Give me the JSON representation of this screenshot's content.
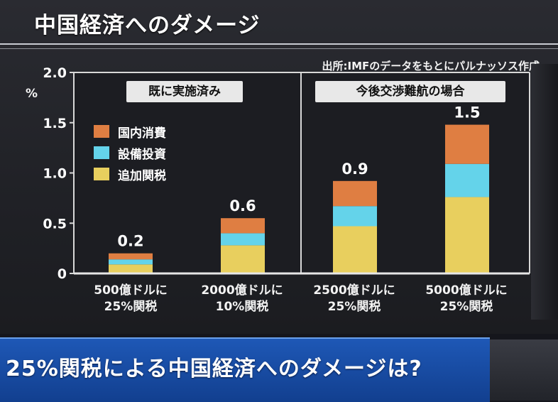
{
  "header": {
    "title": "中国経済へのダメージ",
    "source": "出所:IMFのデータをもとにパルナッソス作成"
  },
  "banner": {
    "text": "25%関税による中国経済へのダメージは?"
  },
  "colors": {
    "domestic": "#df7e42",
    "investment": "#64d3ea",
    "tariff": "#e8cf5e"
  },
  "chart_data": {
    "type": "bar",
    "stacked": true,
    "unit": "%",
    "ylim": [
      0,
      2.0
    ],
    "yticks": [
      "2.0",
      "1.5",
      "1.0",
      "0.5",
      "0"
    ],
    "groups": [
      {
        "label": "既に実施済み",
        "categories": [
          0,
          1
        ]
      },
      {
        "label": "今後交渉難航の場合",
        "categories": [
          2,
          3
        ]
      }
    ],
    "categories": [
      {
        "line1": "500億ドルに",
        "line2": "25%関税"
      },
      {
        "line1": "2000億ドルに",
        "line2": "10%関税"
      },
      {
        "line1": "2500億ドルに",
        "line2": "25%関税"
      },
      {
        "line1": "5000億ドルに",
        "line2": "25%関税"
      }
    ],
    "totals": [
      "0.2",
      "0.6",
      "0.9",
      "1.5"
    ],
    "series": [
      {
        "name": "追加関税",
        "color": "#e8cf5e",
        "values": [
          0.09,
          0.28,
          0.47,
          0.76
        ]
      },
      {
        "name": "設備投資",
        "color": "#64d3ea",
        "values": [
          0.05,
          0.12,
          0.2,
          0.33
        ]
      },
      {
        "name": "国内消費",
        "color": "#df7e42",
        "values": [
          0.06,
          0.15,
          0.25,
          0.39
        ]
      }
    ],
    "legend": [
      "国内消費",
      "設備投資",
      "追加関税"
    ]
  }
}
